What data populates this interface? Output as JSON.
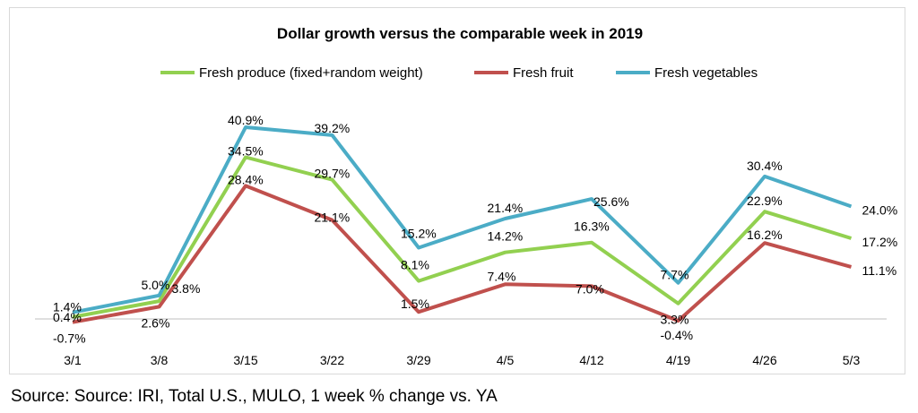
{
  "chart_data": {
    "type": "line",
    "title": "Dollar growth versus the comparable week in 2019",
    "categories": [
      "3/1",
      "3/8",
      "3/15",
      "3/22",
      "3/29",
      "4/5",
      "4/12",
      "4/19",
      "4/26",
      "5/3"
    ],
    "series": [
      {
        "name": "Fresh produce (fixed+random weight)",
        "color": "#92d050",
        "values": [
          0.4,
          3.8,
          34.5,
          29.7,
          8.1,
          14.2,
          16.3,
          3.3,
          22.9,
          17.2
        ],
        "labels": [
          "0.4%",
          "3.8%",
          "34.5%",
          "29.7%",
          "8.1%",
          "14.2%",
          "16.3%",
          "3.3%",
          "22.9%",
          "17.2%"
        ]
      },
      {
        "name": "Fresh fruit",
        "color": "#c0504d",
        "values": [
          -0.7,
          2.6,
          28.4,
          21.1,
          1.5,
          7.4,
          7.0,
          -0.4,
          16.2,
          11.1
        ],
        "labels": [
          "-0.7%",
          "2.6%",
          "28.4%",
          "21.1%",
          "1.5%",
          "7.4%",
          "7.0%",
          "-0.4%",
          "16.2%",
          "11.1%"
        ]
      },
      {
        "name": "Fresh vegetables",
        "color": "#4bacc6",
        "values": [
          1.4,
          5.0,
          40.9,
          39.2,
          15.2,
          21.4,
          25.6,
          7.7,
          30.4,
          24.0
        ],
        "labels": [
          "1.4%",
          "5.0%",
          "40.9%",
          "39.2%",
          "15.2%",
          "21.4%",
          "25.6%",
          "7.7%",
          "30.4%",
          "24.0%"
        ]
      }
    ],
    "legend_position": "top",
    "grid": false
  },
  "source": "Source: Source: IRI, Total U.S., MULO, 1 week % change vs. YA"
}
